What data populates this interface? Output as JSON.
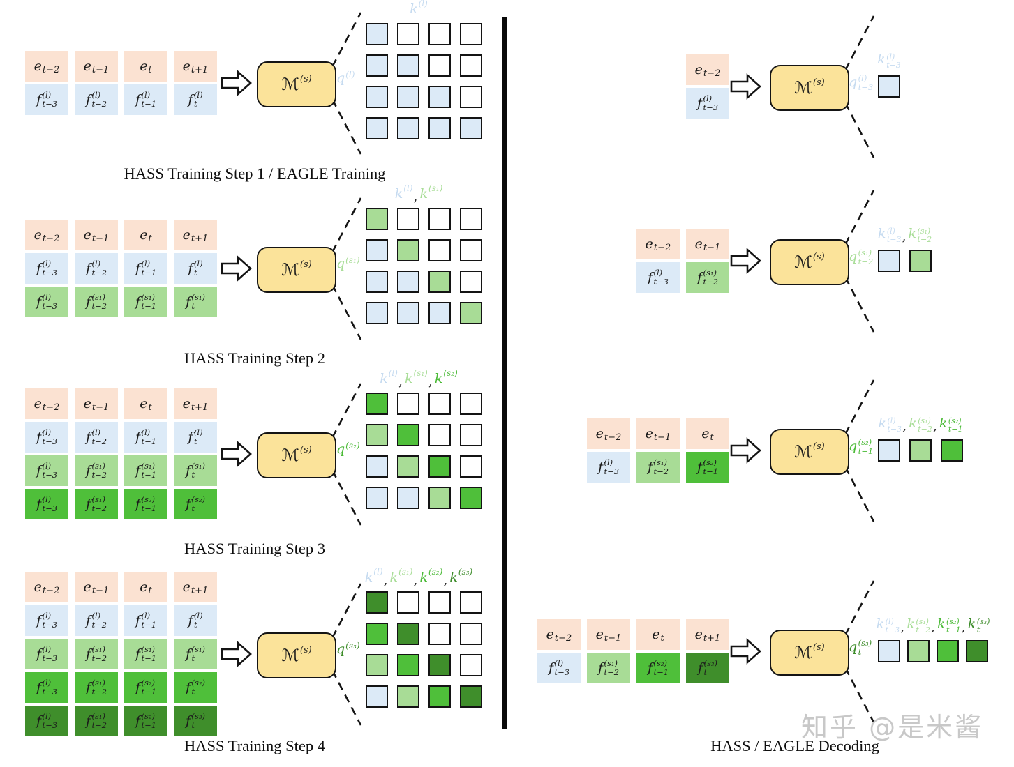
{
  "comma": ",",
  "colors": {
    "peach": "#fbe2d2",
    "blue": "#dceaf7",
    "g1": "#a8dc96",
    "g2": "#4fbf3a",
    "g3": "#3f8e2b",
    "none": "#ffffff",
    "boxFill": "#fbe39a",
    "labelBlue": "#c6dbf0",
    "labelG1": "#a9dd98",
    "labelG2": "#4bba37",
    "labelG3": "#3d8c2a"
  },
  "model_label": {
    "base": "ℳ",
    "sup": "(s)"
  },
  "watermark": "知乎 @是米酱",
  "decoding_caption": "HASS / EAGLE Decoding",
  "training_steps": [
    {
      "caption": "HASS Training Step 1 / EAGLE Training",
      "grid": [
        [
          {
            "base": "e",
            "sub": "t−2",
            "color": "peach"
          },
          {
            "base": "e",
            "sub": "t−1",
            "color": "peach"
          },
          {
            "base": "e",
            "sub": "t",
            "color": "peach"
          },
          {
            "base": "e",
            "sub": "t+1",
            "color": "peach"
          }
        ],
        [
          {
            "base": "f",
            "sup": "(l)",
            "sub": "t−3",
            "color": "blue"
          },
          {
            "base": "f",
            "sup": "(l)",
            "sub": "t−2",
            "color": "blue"
          },
          {
            "base": "f",
            "sup": "(l)",
            "sub": "t−1",
            "color": "blue"
          },
          {
            "base": "f",
            "sup": "(l)",
            "sub": "t",
            "color": "blue"
          }
        ]
      ],
      "q": {
        "base": "q",
        "sup": "(l)",
        "color": "labelBlue"
      },
      "k": [
        {
          "base": "k",
          "sup": "(l)",
          "color": "labelBlue"
        }
      ],
      "mask": [
        [
          "blue",
          "none",
          "none",
          "none"
        ],
        [
          "blue",
          "blue",
          "none",
          "none"
        ],
        [
          "blue",
          "blue",
          "blue",
          "none"
        ],
        [
          "blue",
          "blue",
          "blue",
          "blue"
        ]
      ]
    },
    {
      "caption": "HASS Training Step 2",
      "grid": [
        [
          {
            "base": "e",
            "sub": "t−2",
            "color": "peach"
          },
          {
            "base": "e",
            "sub": "t−1",
            "color": "peach"
          },
          {
            "base": "e",
            "sub": "t",
            "color": "peach"
          },
          {
            "base": "e",
            "sub": "t+1",
            "color": "peach"
          }
        ],
        [
          {
            "base": "f",
            "sup": "(l)",
            "sub": "t−3",
            "color": "blue"
          },
          {
            "base": "f",
            "sup": "(l)",
            "sub": "t−2",
            "color": "blue"
          },
          {
            "base": "f",
            "sup": "(l)",
            "sub": "t−1",
            "color": "blue"
          },
          {
            "base": "f",
            "sup": "(l)",
            "sub": "t",
            "color": "blue"
          }
        ],
        [
          {
            "base": "f",
            "sup": "(l)",
            "sub": "t−3",
            "color": "g1"
          },
          {
            "base": "f",
            "sup": "(s₁)",
            "sub": "t−2",
            "color": "g1"
          },
          {
            "base": "f",
            "sup": "(s₁)",
            "sub": "t−1",
            "color": "g1"
          },
          {
            "base": "f",
            "sup": "(s₁)",
            "sub": "t",
            "color": "g1"
          }
        ]
      ],
      "q": {
        "base": "q",
        "sup": "(s₁)",
        "color": "labelG1"
      },
      "k": [
        {
          "base": "k",
          "sup": "(l)",
          "color": "labelBlue"
        },
        {
          "base": "k",
          "sup": "(s₁)",
          "color": "labelG1"
        }
      ],
      "mask": [
        [
          "g1",
          "none",
          "none",
          "none"
        ],
        [
          "blue",
          "g1",
          "none",
          "none"
        ],
        [
          "blue",
          "blue",
          "g1",
          "none"
        ],
        [
          "blue",
          "blue",
          "blue",
          "g1"
        ]
      ]
    },
    {
      "caption": "HASS Training Step 3",
      "grid": [
        [
          {
            "base": "e",
            "sub": "t−2",
            "color": "peach"
          },
          {
            "base": "e",
            "sub": "t−1",
            "color": "peach"
          },
          {
            "base": "e",
            "sub": "t",
            "color": "peach"
          },
          {
            "base": "e",
            "sub": "t+1",
            "color": "peach"
          }
        ],
        [
          {
            "base": "f",
            "sup": "(l)",
            "sub": "t−3",
            "color": "blue"
          },
          {
            "base": "f",
            "sup": "(l)",
            "sub": "t−2",
            "color": "blue"
          },
          {
            "base": "f",
            "sup": "(l)",
            "sub": "t−1",
            "color": "blue"
          },
          {
            "base": "f",
            "sup": "(l)",
            "sub": "t",
            "color": "blue"
          }
        ],
        [
          {
            "base": "f",
            "sup": "(l)",
            "sub": "t−3",
            "color": "g1"
          },
          {
            "base": "f",
            "sup": "(s₁)",
            "sub": "t−2",
            "color": "g1"
          },
          {
            "base": "f",
            "sup": "(s₁)",
            "sub": "t−1",
            "color": "g1"
          },
          {
            "base": "f",
            "sup": "(s₁)",
            "sub": "t",
            "color": "g1"
          }
        ],
        [
          {
            "base": "f",
            "sup": "(l)",
            "sub": "t−3",
            "color": "g2"
          },
          {
            "base": "f",
            "sup": "(s₁)",
            "sub": "t−2",
            "color": "g2"
          },
          {
            "base": "f",
            "sup": "(s₂)",
            "sub": "t−1",
            "color": "g2"
          },
          {
            "base": "f",
            "sup": "(s₂)",
            "sub": "t",
            "color": "g2"
          }
        ]
      ],
      "q": {
        "base": "q",
        "sup": "(s₂)",
        "color": "labelG2"
      },
      "k": [
        {
          "base": "k",
          "sup": "(l)",
          "color": "labelBlue"
        },
        {
          "base": "k",
          "sup": "(s₁)",
          "color": "labelG1"
        },
        {
          "base": "k",
          "sup": "(s₂)",
          "color": "labelG2"
        }
      ],
      "mask": [
        [
          "g2",
          "none",
          "none",
          "none"
        ],
        [
          "g1",
          "g2",
          "none",
          "none"
        ],
        [
          "blue",
          "g1",
          "g2",
          "none"
        ],
        [
          "blue",
          "blue",
          "g1",
          "g2"
        ]
      ]
    },
    {
      "caption": "HASS Training Step 4",
      "grid": [
        [
          {
            "base": "e",
            "sub": "t−2",
            "color": "peach"
          },
          {
            "base": "e",
            "sub": "t−1",
            "color": "peach"
          },
          {
            "base": "e",
            "sub": "t",
            "color": "peach"
          },
          {
            "base": "e",
            "sub": "t+1",
            "color": "peach"
          }
        ],
        [
          {
            "base": "f",
            "sup": "(l)",
            "sub": "t−3",
            "color": "blue"
          },
          {
            "base": "f",
            "sup": "(l)",
            "sub": "t−2",
            "color": "blue"
          },
          {
            "base": "f",
            "sup": "(l)",
            "sub": "t−1",
            "color": "blue"
          },
          {
            "base": "f",
            "sup": "(l)",
            "sub": "t",
            "color": "blue"
          }
        ],
        [
          {
            "base": "f",
            "sup": "(l)",
            "sub": "t−3",
            "color": "g1"
          },
          {
            "base": "f",
            "sup": "(s₁)",
            "sub": "t−2",
            "color": "g1"
          },
          {
            "base": "f",
            "sup": "(s₁)",
            "sub": "t−1",
            "color": "g1"
          },
          {
            "base": "f",
            "sup": "(s₁)",
            "sub": "t",
            "color": "g1"
          }
        ],
        [
          {
            "base": "f",
            "sup": "(l)",
            "sub": "t−3",
            "color": "g2"
          },
          {
            "base": "f",
            "sup": "(s₁)",
            "sub": "t−2",
            "color": "g2"
          },
          {
            "base": "f",
            "sup": "(s₂)",
            "sub": "t−1",
            "color": "g2"
          },
          {
            "base": "f",
            "sup": "(s₂)",
            "sub": "t",
            "color": "g2"
          }
        ],
        [
          {
            "base": "f",
            "sup": "(l)",
            "sub": "t−3",
            "color": "g3"
          },
          {
            "base": "f",
            "sup": "(s₁)",
            "sub": "t−2",
            "color": "g3"
          },
          {
            "base": "f",
            "sup": "(s₂)",
            "sub": "t−1",
            "color": "g3"
          },
          {
            "base": "f",
            "sup": "(s₃)",
            "sub": "t",
            "color": "g3"
          }
        ]
      ],
      "q": {
        "base": "q",
        "sup": "(s₃)",
        "color": "labelG3"
      },
      "k": [
        {
          "base": "k",
          "sup": "(l)",
          "color": "labelBlue"
        },
        {
          "base": "k",
          "sup": "(s₁)",
          "color": "labelG1"
        },
        {
          "base": "k",
          "sup": "(s₂)",
          "color": "labelG2"
        },
        {
          "base": "k",
          "sup": "(s₃)",
          "color": "labelG3"
        }
      ],
      "mask": [
        [
          "g3",
          "none",
          "none",
          "none"
        ],
        [
          "g2",
          "g3",
          "none",
          "none"
        ],
        [
          "g1",
          "g2",
          "g3",
          "none"
        ],
        [
          "blue",
          "g1",
          "g2",
          "g3"
        ]
      ]
    }
  ],
  "decoding_stages": [
    {
      "grid": [
        [
          {
            "base": "e",
            "sub": "t−2",
            "color": "peach"
          }
        ],
        [
          {
            "base": "f",
            "sup": "(l)",
            "sub": "t−3",
            "color": "blue"
          }
        ]
      ],
      "q": {
        "base": "q",
        "sup": "(l)",
        "sub": "t−3",
        "color": "labelBlue"
      },
      "k": [
        {
          "base": "k",
          "sup": "(l)",
          "sub": "t−3",
          "color": "labelBlue"
        }
      ],
      "outputs": [
        "blue"
      ]
    },
    {
      "grid": [
        [
          {
            "base": "e",
            "sub": "t−2",
            "color": "peach"
          },
          {
            "base": "e",
            "sub": "t−1",
            "color": "peach"
          }
        ],
        [
          {
            "base": "f",
            "sup": "(l)",
            "sub": "t−3",
            "color": "blue"
          },
          {
            "base": "f",
            "sup": "(s₁)",
            "sub": "t−2",
            "color": "g1"
          }
        ]
      ],
      "q": {
        "base": "q",
        "sup": "(s₁)",
        "sub": "t−2",
        "color": "labelG1"
      },
      "k": [
        {
          "base": "k",
          "sup": "(l)",
          "sub": "t−3",
          "color": "labelBlue"
        },
        {
          "base": "k",
          "sup": "(s₁)",
          "sub": "t−2",
          "color": "labelG1"
        }
      ],
      "outputs": [
        "blue",
        "g1"
      ]
    },
    {
      "grid": [
        [
          {
            "base": "e",
            "sub": "t−2",
            "color": "peach"
          },
          {
            "base": "e",
            "sub": "t−1",
            "color": "peach"
          },
          {
            "base": "e",
            "sub": "t",
            "color": "peach"
          }
        ],
        [
          {
            "base": "f",
            "sup": "(l)",
            "sub": "t−3",
            "color": "blue"
          },
          {
            "base": "f",
            "sup": "(s₁)",
            "sub": "t−2",
            "color": "g1"
          },
          {
            "base": "f",
            "sup": "(s₂)",
            "sub": "t−1",
            "color": "g2"
          }
        ]
      ],
      "q": {
        "base": "q",
        "sup": "(s₂)",
        "sub": "t−1",
        "color": "labelG2"
      },
      "k": [
        {
          "base": "k",
          "sup": "(l)",
          "sub": "t−3",
          "color": "labelBlue"
        },
        {
          "base": "k",
          "sup": "(s₁)",
          "sub": "t−2",
          "color": "labelG1"
        },
        {
          "base": "k",
          "sup": "(s₂)",
          "sub": "t−1",
          "color": "labelG2"
        }
      ],
      "outputs": [
        "blue",
        "g1",
        "g2"
      ]
    },
    {
      "grid": [
        [
          {
            "base": "e",
            "sub": "t−2",
            "color": "peach"
          },
          {
            "base": "e",
            "sub": "t−1",
            "color": "peach"
          },
          {
            "base": "e",
            "sub": "t",
            "color": "peach"
          },
          {
            "base": "e",
            "sub": "t+1",
            "color": "peach"
          }
        ],
        [
          {
            "base": "f",
            "sup": "(l)",
            "sub": "t−3",
            "color": "blue"
          },
          {
            "base": "f",
            "sup": "(s₁)",
            "sub": "t−2",
            "color": "g1"
          },
          {
            "base": "f",
            "sup": "(s₂)",
            "sub": "t−1",
            "color": "g2"
          },
          {
            "base": "f",
            "sup": "(s₃)",
            "sub": "t",
            "color": "g3"
          }
        ]
      ],
      "q": {
        "base": "q",
        "sup": "(s₃)",
        "sub": "t",
        "color": "labelG3"
      },
      "k": [
        {
          "base": "k",
          "sup": "(l)",
          "sub": "t−3",
          "color": "labelBlue"
        },
        {
          "base": "k",
          "sup": "(s₁)",
          "sub": "t−2",
          "color": "labelG1"
        },
        {
          "base": "k",
          "sup": "(s₂)",
          "sub": "t−1",
          "color": "labelG2"
        },
        {
          "base": "k",
          "sup": "(s₃)",
          "sub": "t",
          "color": "labelG3"
        }
      ],
      "outputs": [
        "blue",
        "g1",
        "g2",
        "g3"
      ]
    }
  ]
}
